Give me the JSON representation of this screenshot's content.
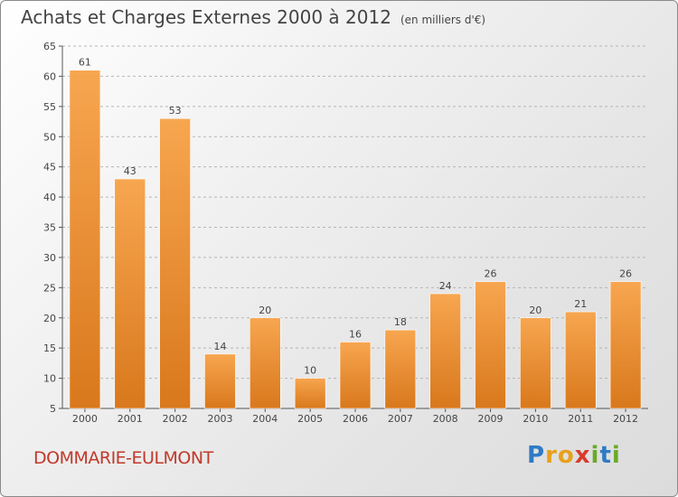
{
  "header": {
    "title": "Achats et Charges Externes 2000 à 2012",
    "subtitle": "(en milliers d'€)"
  },
  "footer": {
    "town": "DOMMARIE-EULMONT",
    "logo_letters": [
      "P",
      "r",
      "o",
      "x",
      "i",
      "t",
      "i"
    ],
    "logo_colors": [
      "#2e7bc4",
      "#e8a01c",
      "#e8a01c",
      "#d93a2b",
      "#6aaa2a",
      "#2e7bc4",
      "#6aaa2a"
    ]
  },
  "colors": {
    "bar_light": "#f7a650",
    "bar_dark": "#d9781c",
    "grid": "#b5b5b5",
    "axis": "#555555"
  },
  "chart_data": {
    "type": "bar",
    "categories": [
      "2000",
      "2001",
      "2002",
      "2003",
      "2004",
      "2005",
      "2006",
      "2007",
      "2008",
      "2009",
      "2010",
      "2011",
      "2012"
    ],
    "values": [
      61,
      43,
      53,
      14,
      20,
      10,
      16,
      18,
      24,
      26,
      20,
      21,
      26
    ],
    "value_labels": [
      "61",
      "43",
      "53",
      "14",
      "20",
      "10",
      "16",
      "18",
      "24",
      "26",
      "20",
      "21",
      "26"
    ],
    "ylim": [
      5,
      65
    ],
    "yticks": [
      5,
      10,
      15,
      20,
      25,
      30,
      35,
      40,
      45,
      50,
      55,
      60,
      65
    ],
    "ytick_labels": [
      "5",
      "10",
      "15",
      "20",
      "25",
      "30",
      "35",
      "40",
      "45",
      "50",
      "55",
      "60",
      "65"
    ],
    "grid": true,
    "grid_style": "dashed horizontal"
  }
}
